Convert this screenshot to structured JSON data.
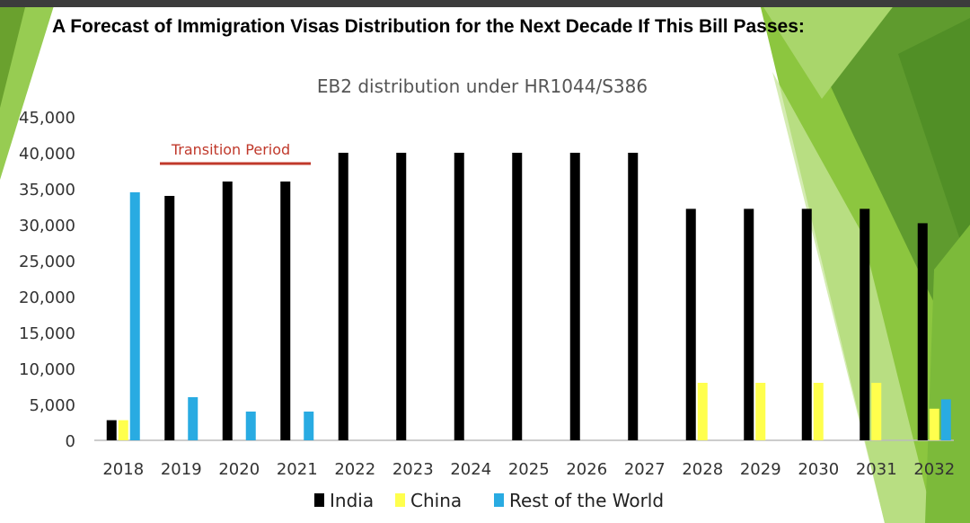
{
  "headline": "A Forecast of Immigration Visas Distribution for the Next Decade If This Bill Passes:",
  "chart_data": {
    "type": "bar",
    "title": "EB2 distribution under HR1044/S386",
    "annotation": "Transition Period",
    "categories": [
      "2018",
      "2019",
      "2020",
      "2021",
      "2022",
      "2023",
      "2024",
      "2025",
      "2026",
      "2027",
      "2028",
      "2029",
      "2030",
      "2031",
      "2032"
    ],
    "series": [
      {
        "name": "India",
        "color": "#000000",
        "values": [
          2800,
          34000,
          36000,
          36000,
          40000,
          40000,
          40000,
          40000,
          40000,
          40000,
          32200,
          32200,
          32200,
          32200,
          30200
        ]
      },
      {
        "name": "China",
        "color": "#ffff4d",
        "values": [
          2800,
          0,
          0,
          0,
          0,
          0,
          0,
          0,
          0,
          0,
          8000,
          8000,
          8000,
          8000,
          4400
        ]
      },
      {
        "name": "Rest of the World",
        "color": "#29abe2",
        "values": [
          34500,
          6000,
          4000,
          4000,
          0,
          0,
          0,
          0,
          0,
          0,
          0,
          0,
          0,
          0,
          5700
        ]
      }
    ],
    "y_ticks": [
      "0",
      "5,000",
      "10,000",
      "15,000",
      "20,000",
      "25,000",
      "30,000",
      "35,000",
      "40,000",
      "45,000"
    ],
    "ylim": [
      0,
      45000
    ],
    "grid": false,
    "legend_position": "bottom"
  }
}
